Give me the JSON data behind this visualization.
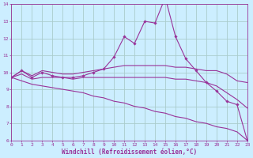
{
  "background_color": "#cceeff",
  "grid_color": "#aacccc",
  "line_color": "#993399",
  "xlim": [
    0,
    23
  ],
  "ylim": [
    6,
    14
  ],
  "xlabel": "Windchill (Refroidissement éolien,°C)",
  "xticks": [
    0,
    1,
    2,
    3,
    4,
    5,
    6,
    7,
    8,
    9,
    10,
    11,
    12,
    13,
    14,
    15,
    16,
    17,
    18,
    19,
    20,
    21,
    22,
    23
  ],
  "yticks": [
    6,
    7,
    8,
    9,
    10,
    11,
    12,
    13,
    14
  ],
  "lines": [
    {
      "x": [
        0,
        1,
        2,
        3,
        4,
        5,
        6,
        7,
        8,
        9,
        10,
        11,
        12,
        13,
        14,
        15,
        16,
        17,
        18,
        19,
        20,
        21,
        22,
        23
      ],
      "y": [
        9.7,
        10.1,
        9.7,
        10.0,
        9.8,
        9.7,
        9.7,
        9.8,
        10.0,
        10.2,
        10.9,
        12.1,
        11.7,
        13.0,
        12.9,
        14.4,
        12.1,
        10.8,
        10.1,
        9.4,
        8.9,
        8.3,
        8.1,
        6.0
      ],
      "has_markers": true
    },
    {
      "x": [
        0,
        1,
        2,
        3,
        4,
        5,
        6,
        7,
        8,
        9,
        10,
        11,
        12,
        13,
        14,
        15,
        16,
        17,
        18,
        19,
        20,
        21,
        22,
        23
      ],
      "y": [
        9.7,
        10.1,
        9.8,
        10.1,
        10.0,
        9.9,
        9.9,
        10.0,
        10.1,
        10.2,
        10.3,
        10.4,
        10.4,
        10.4,
        10.4,
        10.4,
        10.3,
        10.3,
        10.2,
        10.1,
        10.1,
        9.9,
        9.5,
        9.4
      ],
      "has_markers": false
    },
    {
      "x": [
        0,
        1,
        2,
        3,
        4,
        5,
        6,
        7,
        8,
        9,
        10,
        11,
        12,
        13,
        14,
        15,
        16,
        17,
        18,
        19,
        20,
        21,
        22,
        23
      ],
      "y": [
        9.7,
        9.9,
        9.6,
        9.7,
        9.7,
        9.7,
        9.6,
        9.7,
        9.7,
        9.7,
        9.7,
        9.7,
        9.7,
        9.7,
        9.7,
        9.7,
        9.6,
        9.6,
        9.5,
        9.4,
        9.2,
        8.8,
        8.4,
        7.9
      ],
      "has_markers": false
    },
    {
      "x": [
        0,
        1,
        2,
        3,
        4,
        5,
        6,
        7,
        8,
        9,
        10,
        11,
        12,
        13,
        14,
        15,
        16,
        17,
        18,
        19,
        20,
        21,
        22,
        23
      ],
      "y": [
        9.7,
        9.5,
        9.3,
        9.2,
        9.1,
        9.0,
        8.9,
        8.8,
        8.6,
        8.5,
        8.3,
        8.2,
        8.0,
        7.9,
        7.7,
        7.6,
        7.4,
        7.3,
        7.1,
        7.0,
        6.8,
        6.7,
        6.5,
        6.0
      ],
      "has_markers": false
    }
  ],
  "tick_fontsize": 4.5,
  "label_fontsize": 5.5,
  "label_color": "#993399",
  "tick_color": "#993399"
}
